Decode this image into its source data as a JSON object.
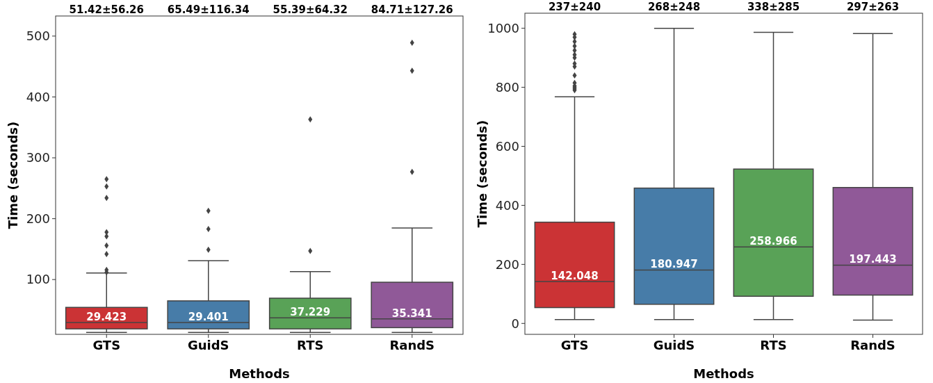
{
  "chart_data": [
    {
      "type": "box",
      "xlabel": "Methods",
      "ylabel": "Time (seconds)",
      "categories": [
        "GTS",
        "GuidS",
        "RTS",
        "RandS"
      ],
      "colors": [
        "#cb3335",
        "#477ca8",
        "#59a257",
        "#905998"
      ],
      "value_labels": [
        "29.423",
        "29.401",
        "37.229",
        "35.341"
      ],
      "ylim": [
        10,
        533
      ],
      "yticks": [
        100,
        200,
        300,
        400,
        500
      ],
      "boxes": [
        {
          "low": 13,
          "q1": 19,
          "median": 29.423,
          "q3": 54.3,
          "high": 110.7,
          "outliers": [
            265,
            253,
            234,
            178,
            171,
            156,
            142,
            116,
            112
          ]
        },
        {
          "low": 13,
          "q1": 19,
          "median": 29.401,
          "q3": 65,
          "high": 131,
          "outliers": [
            213,
            183,
            149
          ]
        },
        {
          "low": 13,
          "q1": 19,
          "median": 37.229,
          "q3": 69.4,
          "high": 113,
          "outliers": [
            363,
            147
          ]
        },
        {
          "low": 13,
          "q1": 21,
          "median": 35.341,
          "q3": 95.6,
          "high": 184.6,
          "outliers": [
            489,
            443,
            277
          ]
        }
      ],
      "annotations": [
        "51.42±56.26",
        "65.49±116.34",
        "55.39±64.32",
        "84.71±127.26"
      ]
    },
    {
      "type": "box",
      "xlabel": "Methods",
      "ylabel": "Time (seconds)",
      "categories": [
        "GTS",
        "GuidS",
        "RTS",
        "RandS"
      ],
      "colors": [
        "#cb3335",
        "#477ca8",
        "#59a257",
        "#905998"
      ],
      "value_labels": [
        "142.048",
        "180.947",
        "258.966",
        "197.443"
      ],
      "ylim": [
        -37,
        1051
      ],
      "yticks": [
        0,
        200,
        400,
        600,
        800,
        1000
      ],
      "boxes": [
        {
          "low": 13,
          "q1": 53.6,
          "median": 142.048,
          "q3": 343,
          "high": 768,
          "outliers": [
            980,
            970,
            955,
            940,
            925,
            910,
            900,
            880,
            870,
            840,
            815,
            805,
            800,
            795,
            790
          ]
        },
        {
          "low": 13,
          "q1": 64.8,
          "median": 180.947,
          "q3": 458.5,
          "high": 1000
        },
        {
          "low": 13,
          "q1": 92,
          "median": 258.966,
          "q3": 523,
          "high": 986
        },
        {
          "low": 11,
          "q1": 96,
          "median": 197.443,
          "q3": 460.5,
          "high": 982
        }
      ],
      "annotations": [
        "237±240",
        "268±248",
        "338±285",
        "297±263"
      ]
    }
  ]
}
